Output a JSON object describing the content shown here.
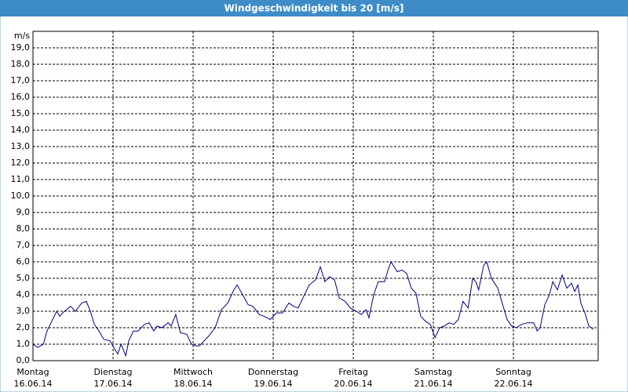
{
  "chart_data": {
    "type": "line",
    "title": "Windgeschwindigkeit bis 20 [m/s]",
    "y_label": "m/s",
    "xlim": [
      0,
      169.4
    ],
    "ylim": [
      0,
      20
    ],
    "xticks": [
      {
        "value": 0,
        "label": "Montag"
      },
      {
        "value": 24,
        "label": "Dienstag"
      },
      {
        "value": 48,
        "label": "Mittwoch"
      },
      {
        "value": 72,
        "label": "Donnerstag"
      },
      {
        "value": 96,
        "label": "Freitag"
      },
      {
        "value": 120,
        "label": "Samstag"
      },
      {
        "value": 144,
        "label": "Sonntag"
      }
    ],
    "xtick_dates": [
      "16.06.14",
      "17.06.14",
      "18.06.14",
      "19.06.14",
      "20.06.14",
      "21.06.14",
      "22.06.14"
    ],
    "yticks": [
      {
        "value": 0,
        "label": "0,0"
      },
      {
        "value": 1,
        "label": "1,0"
      },
      {
        "value": 2,
        "label": "2,0"
      },
      {
        "value": 3,
        "label": "3,0"
      },
      {
        "value": 4,
        "label": "4,0"
      },
      {
        "value": 5,
        "label": "5,0"
      },
      {
        "value": 6,
        "label": "6,0"
      },
      {
        "value": 7,
        "label": "7,0"
      },
      {
        "value": 8,
        "label": "8,0"
      },
      {
        "value": 9,
        "label": "9,0"
      },
      {
        "value": 10,
        "label": "10,0"
      },
      {
        "value": 11,
        "label": "11,0"
      },
      {
        "value": 12,
        "label": "12,0"
      },
      {
        "value": 13,
        "label": "13,0"
      },
      {
        "value": 14,
        "label": "14,0"
      },
      {
        "value": 15,
        "label": "15,0"
      },
      {
        "value": 16,
        "label": "16,0"
      },
      {
        "value": 17,
        "label": "17,0"
      },
      {
        "value": 18,
        "label": "18,0"
      },
      {
        "value": 19,
        "label": "19,0"
      }
    ],
    "grid": true,
    "color": "#000080",
    "x": [
      0,
      1.4,
      3.1,
      4.2,
      5.4,
      7.1,
      8.0,
      9.4,
      11.3,
      12.7,
      14.6,
      16.0,
      17.2,
      18.4,
      19.8,
      21.2,
      23.1,
      24.5,
      25.4,
      26.4,
      27.8,
      28.7,
      30.1,
      31.5,
      33.4,
      34.8,
      36.2,
      37.2,
      38.6,
      40.5,
      41.4,
      42.8,
      44.2,
      46.1,
      47.5,
      48.9,
      49.9,
      51.3,
      52.7,
      54.6,
      56.5,
      58.4,
      60.2,
      61.2,
      63.1,
      64.5,
      65.9,
      67.8,
      69.2,
      71.1,
      73.0,
      74.8,
      76.7,
      78.1,
      79.5,
      80.9,
      82.8,
      84.7,
      86.1,
      87.5,
      88.9,
      90.4,
      91.8,
      93.6,
      95.1,
      96.9,
      98.4,
      99.8,
      100.7,
      102.1,
      103.5,
      105.4,
      106.4,
      107.3,
      109.2,
      110.6,
      112.0,
      113.4,
      114.8,
      116.2,
      117.6,
      119.1,
      120.5,
      121.9,
      123.3,
      124.7,
      126.1,
      127.5,
      128.9,
      130.4,
      131.8,
      132.7,
      133.6,
      135.1,
      136.0,
      137.4,
      139.3,
      140.2,
      142.1,
      143.5,
      144.9,
      146.4,
      148.2,
      150.1,
      151.1,
      152.0,
      153.4,
      154.8,
      155.8,
      157.2,
      158.6,
      160.0,
      161.4,
      162.4,
      163.3,
      164.2,
      165.6,
      166.6,
      168.0
    ],
    "values": [
      1.0,
      0.8,
      1.0,
      1.8,
      2.3,
      3.0,
      2.7,
      3.0,
      3.3,
      3.0,
      3.5,
      3.6,
      3.0,
      2.2,
      1.8,
      1.3,
      1.2,
      0.7,
      0.4,
      1.0,
      0.3,
      1.2,
      1.8,
      1.8,
      2.2,
      2.3,
      1.8,
      2.1,
      2.0,
      2.3,
      2.1,
      2.8,
      1.7,
      1.6,
      1.0,
      0.9,
      0.9,
      1.2,
      1.5,
      2.0,
      3.1,
      3.5,
      4.3,
      4.6,
      3.9,
      3.4,
      3.3,
      2.8,
      2.7,
      2.5,
      2.9,
      2.9,
      3.5,
      3.3,
      3.2,
      3.8,
      4.6,
      4.9,
      5.7,
      4.8,
      5.1,
      4.9,
      3.8,
      3.6,
      3.2,
      3.0,
      2.8,
      3.1,
      2.6,
      4.0,
      4.8,
      4.8,
      5.5,
      6.0,
      5.4,
      5.5,
      5.3,
      4.4,
      4.1,
      2.7,
      2.4,
      2.2,
      1.4,
      2.0,
      2.1,
      2.3,
      2.2,
      2.5,
      3.6,
      3.2,
      5.0,
      4.8,
      4.3,
      5.8,
      6.0,
      5.0,
      4.4,
      3.8,
      2.5,
      2.1,
      2.0,
      2.2,
      2.3,
      2.3,
      1.8,
      2.0,
      3.4,
      4.0,
      4.8,
      4.3,
      5.2,
      4.4,
      4.7,
      4.2,
      4.6,
      3.5,
      2.8,
      2.1,
      1.9
    ]
  }
}
